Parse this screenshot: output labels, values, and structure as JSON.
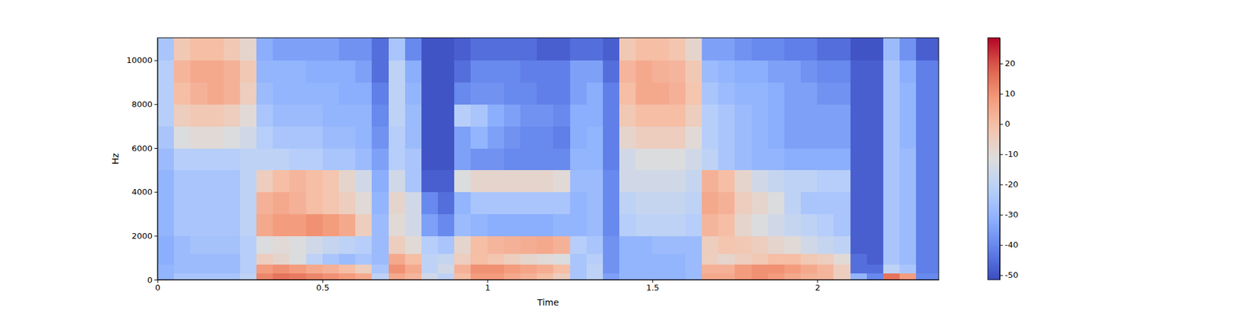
{
  "chart_data": {
    "type": "heatmap",
    "color": "coolwarm",
    "x_label": "Time",
    "y_label": "Hz",
    "xlim": [
      0,
      2.368
    ],
    "ylim": [
      0,
      11025
    ],
    "xticks": [
      0,
      0.5,
      1,
      1.5,
      2
    ],
    "yticks": [
      0,
      2000,
      4000,
      6000,
      8000,
      10000
    ],
    "x_edges": [
      0,
      0.05,
      0.1,
      0.15,
      0.2,
      0.25,
      0.3,
      0.35,
      0.4,
      0.45,
      0.5,
      0.55,
      0.6,
      0.65,
      0.7,
      0.75,
      0.8,
      0.85,
      0.9,
      0.95,
      1,
      1.05,
      1.1,
      1.15,
      1.2,
      1.25,
      1.3,
      1.35,
      1.4,
      1.45,
      1.5,
      1.55,
      1.6,
      1.65,
      1.7,
      1.75,
      1.8,
      1.85,
      1.9,
      1.95,
      2,
      2.05,
      2.1,
      2.15,
      2.2,
      2.25,
      2.3,
      2.368
    ],
    "y_edges": [
      0,
      300,
      700,
      1200,
      2000,
      3000,
      4000,
      5000,
      6000,
      7000,
      8000,
      9000,
      10000,
      11025
    ],
    "z": [
      [
        -30,
        -25,
        -25,
        -25,
        -25,
        -20,
        12,
        15,
        14,
        12,
        10,
        8,
        5,
        -20,
        5,
        2,
        -15,
        -20,
        0,
        8,
        8,
        5,
        3,
        0,
        -5,
        -25,
        -20,
        -35,
        -30,
        -30,
        -30,
        -30,
        -28,
        5,
        5,
        8,
        10,
        8,
        5,
        3,
        2,
        -5,
        -30,
        -40,
        15,
        8,
        -40
      ],
      [
        -30,
        -28,
        -28,
        -28,
        -28,
        -22,
        8,
        10,
        8,
        5,
        3,
        0,
        -5,
        -25,
        10,
        5,
        -20,
        -15,
        3,
        10,
        10,
        8,
        6,
        4,
        0,
        -25,
        -20,
        -38,
        -30,
        -30,
        -30,
        -30,
        -28,
        3,
        3,
        8,
        10,
        10,
        8,
        5,
        2,
        -5,
        -45,
        -45,
        -20,
        -25,
        -42
      ],
      [
        -32,
        -28,
        -28,
        -28,
        -28,
        -22,
        -5,
        -8,
        -12,
        -20,
        -25,
        -28,
        -25,
        -28,
        5,
        0,
        -20,
        -18,
        -5,
        0,
        -2,
        -5,
        -8,
        -10,
        -12,
        -25,
        -22,
        -38,
        -30,
        -30,
        -30,
        -30,
        -28,
        -5,
        -8,
        -5,
        -3,
        0,
        0,
        -3,
        -5,
        -10,
        -45,
        -48,
        -25,
        -28,
        -42
      ],
      [
        -32,
        -28,
        -26,
        -26,
        -26,
        -22,
        -12,
        -10,
        -12,
        -15,
        -18,
        -20,
        -22,
        -28,
        -5,
        -10,
        -22,
        -25,
        -8,
        0,
        2,
        3,
        4,
        5,
        3,
        -22,
        -25,
        -38,
        -30,
        -30,
        -28,
        -28,
        -28,
        -5,
        -2,
        -3,
        -5,
        -8,
        -10,
        -15,
        -18,
        -20,
        -48,
        -48,
        -25,
        -28,
        -42
      ],
      [
        -30,
        -25,
        -25,
        -25,
        -25,
        -20,
        5,
        8,
        8,
        10,
        8,
        5,
        -5,
        -28,
        -10,
        -15,
        -35,
        -40,
        -28,
        -30,
        -32,
        -32,
        -32,
        -32,
        -30,
        -30,
        -28,
        -40,
        -22,
        -20,
        -20,
        -20,
        -22,
        2,
        0,
        -8,
        -12,
        -15,
        -18,
        -20,
        -22,
        -25,
        -48,
        -48,
        -25,
        -28,
        -42
      ],
      [
        -30,
        -25,
        -25,
        -25,
        -25,
        -20,
        3,
        5,
        3,
        0,
        -2,
        -5,
        -10,
        -30,
        -8,
        -15,
        -40,
        -45,
        -30,
        -25,
        -25,
        -25,
        -25,
        -25,
        -25,
        -30,
        -28,
        -40,
        -20,
        -18,
        -18,
        -18,
        -20,
        5,
        3,
        -5,
        -8,
        -12,
        -20,
        -25,
        -25,
        -25,
        -48,
        -48,
        -25,
        -28,
        -42
      ],
      [
        -30,
        -25,
        -25,
        -25,
        -25,
        -20,
        -5,
        0,
        2,
        0,
        -2,
        -8,
        -15,
        -32,
        -15,
        -25,
        -48,
        -48,
        -12,
        -8,
        -8,
        -8,
        -8,
        -8,
        -10,
        -28,
        -28,
        -40,
        -15,
        -15,
        -15,
        -15,
        -18,
        3,
        0,
        -8,
        -15,
        -18,
        -20,
        -20,
        -22,
        -22,
        -48,
        -48,
        -25,
        -28,
        -42
      ],
      [
        -28,
        -22,
        -22,
        -22,
        -22,
        -20,
        -20,
        -20,
        -22,
        -22,
        -25,
        -25,
        -28,
        -35,
        -22,
        -25,
        -50,
        -50,
        -35,
        -38,
        -38,
        -40,
        -40,
        -40,
        -40,
        -30,
        -30,
        -42,
        -15,
        -12,
        -12,
        -12,
        -15,
        -20,
        -25,
        -28,
        -30,
        -30,
        -32,
        -32,
        -32,
        -32,
        -48,
        -48,
        -25,
        -28,
        -42
      ],
      [
        -25,
        -12,
        -10,
        -10,
        -12,
        -15,
        -22,
        -25,
        -25,
        -25,
        -28,
        -28,
        -30,
        -38,
        -22,
        -28,
        -50,
        -50,
        -35,
        -30,
        -35,
        -38,
        -40,
        -40,
        -42,
        -32,
        -30,
        -42,
        -8,
        -5,
        -5,
        -5,
        -10,
        -22,
        -25,
        -28,
        -30,
        -32,
        -35,
        -35,
        -35,
        -35,
        -48,
        -48,
        -25,
        -30,
        -42
      ],
      [
        -22,
        -5,
        -3,
        -3,
        -5,
        -10,
        -25,
        -28,
        -28,
        -28,
        -30,
        -30,
        -30,
        -40,
        -20,
        -28,
        -50,
        -50,
        -22,
        -25,
        -32,
        -35,
        -38,
        -38,
        -40,
        -32,
        -32,
        -42,
        -3,
        0,
        0,
        0,
        -5,
        -22,
        -25,
        -28,
        -30,
        -32,
        -35,
        -35,
        -35,
        -35,
        -48,
        -48,
        -25,
        -30,
        -42
      ],
      [
        -22,
        0,
        3,
        5,
        3,
        -5,
        -28,
        -30,
        -30,
        -30,
        -30,
        -32,
        -32,
        -42,
        -20,
        -30,
        -50,
        -50,
        -40,
        -38,
        -38,
        -40,
        -40,
        -42,
        -42,
        -35,
        -32,
        -42,
        0,
        5,
        5,
        3,
        -2,
        -25,
        -28,
        -30,
        -30,
        -32,
        -35,
        -35,
        -38,
        -38,
        -48,
        -48,
        -25,
        -30,
        -42
      ],
      [
        -22,
        2,
        5,
        5,
        3,
        -3,
        -30,
        -30,
        -30,
        -32,
        -32,
        -32,
        -35,
        -45,
        -20,
        -32,
        -50,
        -50,
        -45,
        -40,
        -40,
        -40,
        -42,
        -42,
        -42,
        -35,
        -35,
        -45,
        2,
        5,
        3,
        2,
        -3,
        -28,
        -30,
        -32,
        -32,
        -35,
        -35,
        -38,
        -40,
        -40,
        -48,
        -48,
        -25,
        -32,
        -42
      ],
      [
        -25,
        -3,
        0,
        0,
        -3,
        -8,
        -32,
        -35,
        -35,
        -35,
        -35,
        -38,
        -38,
        -45,
        -25,
        -40,
        -50,
        -50,
        -48,
        -45,
        -45,
        -45,
        -45,
        -48,
        -48,
        -45,
        -45,
        -48,
        -3,
        0,
        0,
        -2,
        -8,
        -35,
        -35,
        -38,
        -40,
        -40,
        -42,
        -42,
        -45,
        -45,
        -50,
        -50,
        -28,
        -38,
        -48
      ]
    ],
    "colorbar": {
      "range": [
        -51.5,
        28.5
      ],
      "ticks": [
        -50,
        -40,
        -30,
        -20,
        -10,
        0,
        10,
        20
      ]
    }
  }
}
